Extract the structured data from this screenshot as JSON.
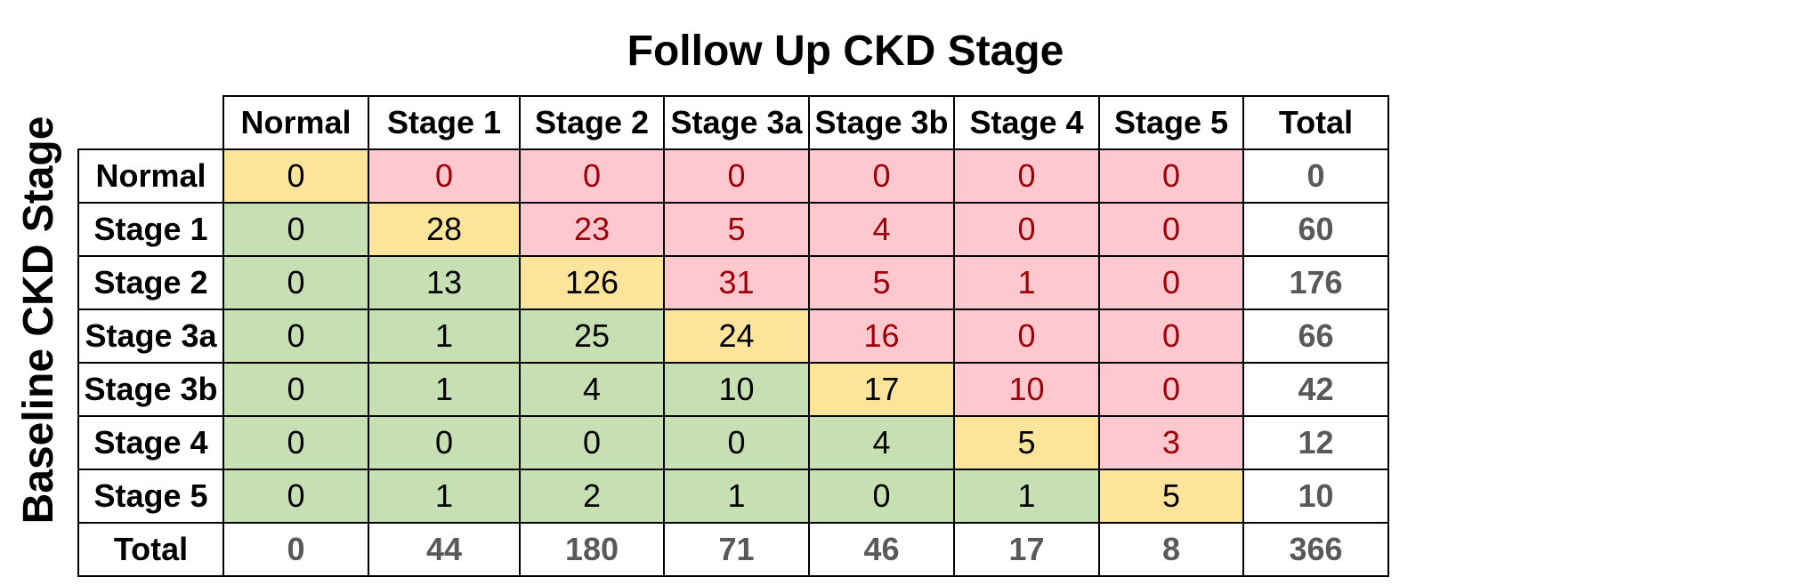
{
  "chart_data": {
    "type": "table",
    "title": "Follow Up CKD Stage",
    "row_axis_label": "Baseline CKD Stage",
    "column_headers": [
      "Normal",
      "Stage 1",
      "Stage 2",
      "Stage 3a",
      "Stage 3b",
      "Stage 4",
      "Stage 5",
      "Total"
    ],
    "row_headers": [
      "Normal",
      "Stage 1",
      "Stage 2",
      "Stage 3a",
      "Stage 3b",
      "Stage 4",
      "Stage 5",
      "Total"
    ],
    "values": [
      [
        0,
        0,
        0,
        0,
        0,
        0,
        0,
        0
      ],
      [
        0,
        28,
        23,
        5,
        4,
        0,
        0,
        60
      ],
      [
        0,
        13,
        126,
        31,
        5,
        1,
        0,
        176
      ],
      [
        0,
        1,
        25,
        24,
        16,
        0,
        0,
        66
      ],
      [
        0,
        1,
        4,
        10,
        17,
        10,
        0,
        42
      ],
      [
        0,
        0,
        0,
        0,
        4,
        5,
        3,
        12
      ],
      [
        0,
        1,
        2,
        1,
        0,
        1,
        5,
        10
      ],
      [
        0,
        44,
        180,
        71,
        46,
        17,
        8,
        366
      ]
    ],
    "colors": {
      "diagonal_fill": "#fde49b",
      "below_diagonal_fill": "#c6e0b4",
      "above_diagonal_fill": "#ffc7ce",
      "above_diagonal_text": "#9c0006",
      "default_text": "#000000",
      "total_text": "#595959"
    }
  }
}
